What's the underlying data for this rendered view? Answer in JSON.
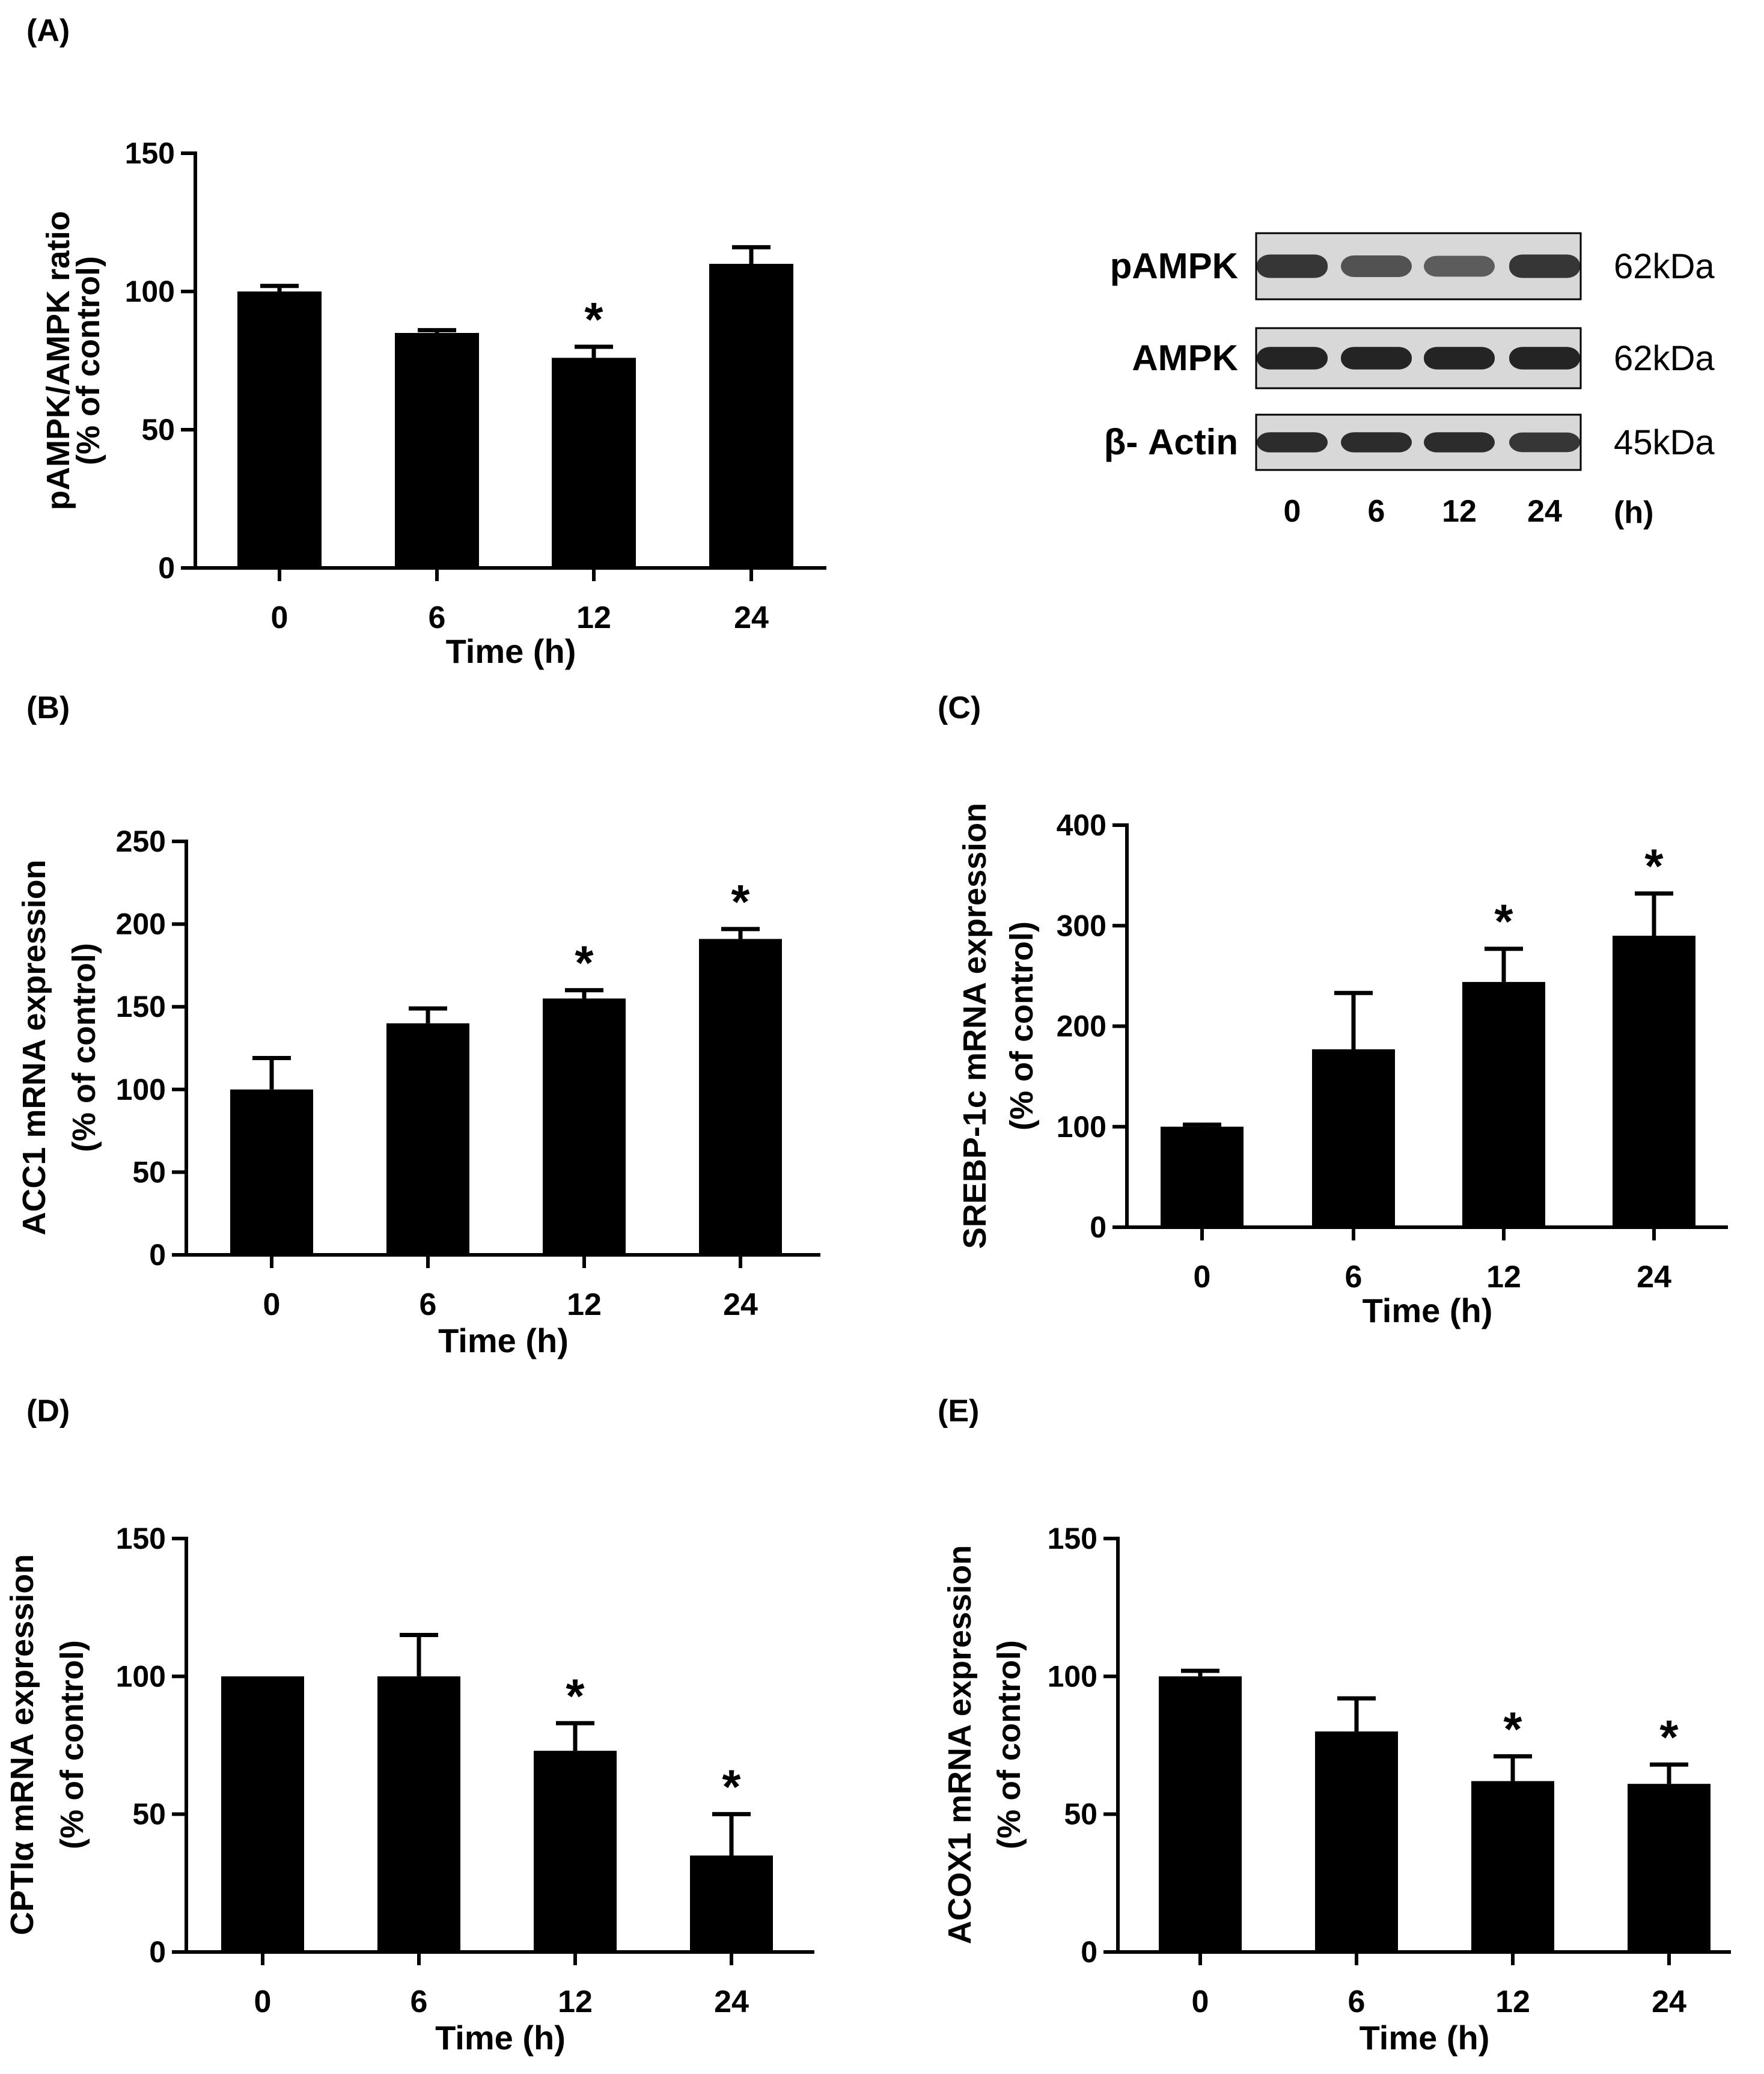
{
  "chart_data": [
    {
      "type": "bar",
      "panel_label": "(A)",
      "categories": [
        "0",
        "6",
        "12",
        "24"
      ],
      "values": [
        100,
        85,
        76,
        110
      ],
      "error": [
        2,
        1,
        4,
        6
      ],
      "significance": [
        "",
        "",
        "*",
        ""
      ],
      "ylabel": "pAMPK/AMPK ratio",
      "ylabel2": "(% of control)",
      "xlabel": "Time (h)",
      "ylim": [
        0,
        150
      ],
      "yticks": [
        0,
        50,
        100,
        150
      ],
      "grid": false
    },
    {
      "type": "bar",
      "panel_label": "(B)",
      "categories": [
        "0",
        "6",
        "12",
        "24"
      ],
      "values": [
        100,
        140,
        155,
        191
      ],
      "error": [
        19,
        9,
        5,
        6
      ],
      "significance": [
        "",
        "",
        "*",
        "*"
      ],
      "ylabel": "ACC1 mRNA expression",
      "ylabel2": "(% of control)",
      "xlabel": "Time (h)",
      "ylim": [
        0,
        250
      ],
      "yticks": [
        0,
        50,
        100,
        150,
        200,
        250
      ],
      "grid": false
    },
    {
      "type": "bar",
      "panel_label": "(C)",
      "categories": [
        "0",
        "6",
        "12",
        "24"
      ],
      "values": [
        100,
        177,
        244,
        290
      ],
      "error": [
        2,
        56,
        33,
        42
      ],
      "significance": [
        "",
        "",
        "*",
        "*"
      ],
      "ylabel": "SREBP-1c mRNA expression",
      "ylabel2": "(% of control)",
      "xlabel": "Time (h)",
      "ylim": [
        0,
        400
      ],
      "yticks": [
        0,
        100,
        200,
        300,
        400
      ],
      "grid": false
    },
    {
      "type": "bar",
      "panel_label": "(D)",
      "categories": [
        "0",
        "6",
        "12",
        "24"
      ],
      "values": [
        100,
        100,
        73,
        35
      ],
      "error": [
        0,
        15,
        10,
        15
      ],
      "significance": [
        "",
        "",
        "*",
        "*"
      ],
      "ylabel": "CPTIα mRNA expression",
      "ylabel2": "(% of control)",
      "xlabel": "Time (h)",
      "ylim": [
        0,
        150
      ],
      "yticks": [
        0,
        50,
        100,
        150
      ],
      "grid": false
    },
    {
      "type": "bar",
      "panel_label": "(E)",
      "categories": [
        "0",
        "6",
        "12",
        "24"
      ],
      "values": [
        100,
        80,
        62,
        61
      ],
      "error": [
        2,
        12,
        9,
        7
      ],
      "significance": [
        "",
        "",
        "*",
        "*"
      ],
      "ylabel": "ACOX1 mRNA expression",
      "ylabel2": "(% of control)",
      "xlabel": "Time (h)",
      "ylim": [
        0,
        150
      ],
      "yticks": [
        0,
        50,
        100,
        150
      ],
      "grid": false
    }
  ],
  "blot": {
    "rows": [
      {
        "label": "pAMPK",
        "size": "62kDa",
        "intensities": [
          0.85,
          0.7,
          0.65,
          0.85
        ]
      },
      {
        "label": "AMPK",
        "size": "62kDa",
        "intensities": [
          0.95,
          0.95,
          0.95,
          0.95
        ]
      },
      {
        "label": "β- Actin",
        "size": "45kDa",
        "intensities": [
          0.9,
          0.9,
          0.9,
          0.85
        ]
      }
    ],
    "lanes": [
      "0",
      "6",
      "12",
      "24"
    ],
    "unit": "(h)"
  },
  "colors": {
    "bar": "#000000",
    "axis": "#000000",
    "band": "#1a1a1a",
    "blot_background": "#d8d8d8"
  }
}
